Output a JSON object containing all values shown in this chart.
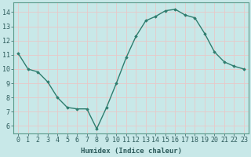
{
  "x": [
    0,
    1,
    2,
    3,
    4,
    5,
    6,
    7,
    8,
    9,
    10,
    11,
    12,
    13,
    14,
    15,
    16,
    17,
    18,
    19,
    20,
    21,
    22,
    23
  ],
  "y": [
    11.1,
    10.0,
    9.8,
    9.1,
    8.0,
    7.3,
    7.2,
    7.2,
    5.8,
    7.3,
    9.0,
    10.8,
    12.3,
    13.4,
    13.7,
    14.1,
    14.2,
    13.8,
    13.6,
    12.5,
    11.2,
    10.5,
    10.2,
    10.0
  ],
  "line_color": "#2e7d6e",
  "marker": "D",
  "marker_size": 1.8,
  "bg_color": "#c8e8e8",
  "grid_color": "#e8c8c8",
  "xlabel": "Humidex (Indice chaleur)",
  "xlim": [
    -0.5,
    23.5
  ],
  "ylim": [
    5.5,
    14.7
  ],
  "yticks": [
    6,
    7,
    8,
    9,
    10,
    11,
    12,
    13,
    14
  ],
  "xticks": [
    0,
    1,
    2,
    3,
    4,
    5,
    6,
    7,
    8,
    9,
    10,
    11,
    12,
    13,
    14,
    15,
    16,
    17,
    18,
    19,
    20,
    21,
    22,
    23
  ],
  "xlabel_fontsize": 6.5,
  "tick_fontsize": 6.0,
  "line_width": 1.0
}
